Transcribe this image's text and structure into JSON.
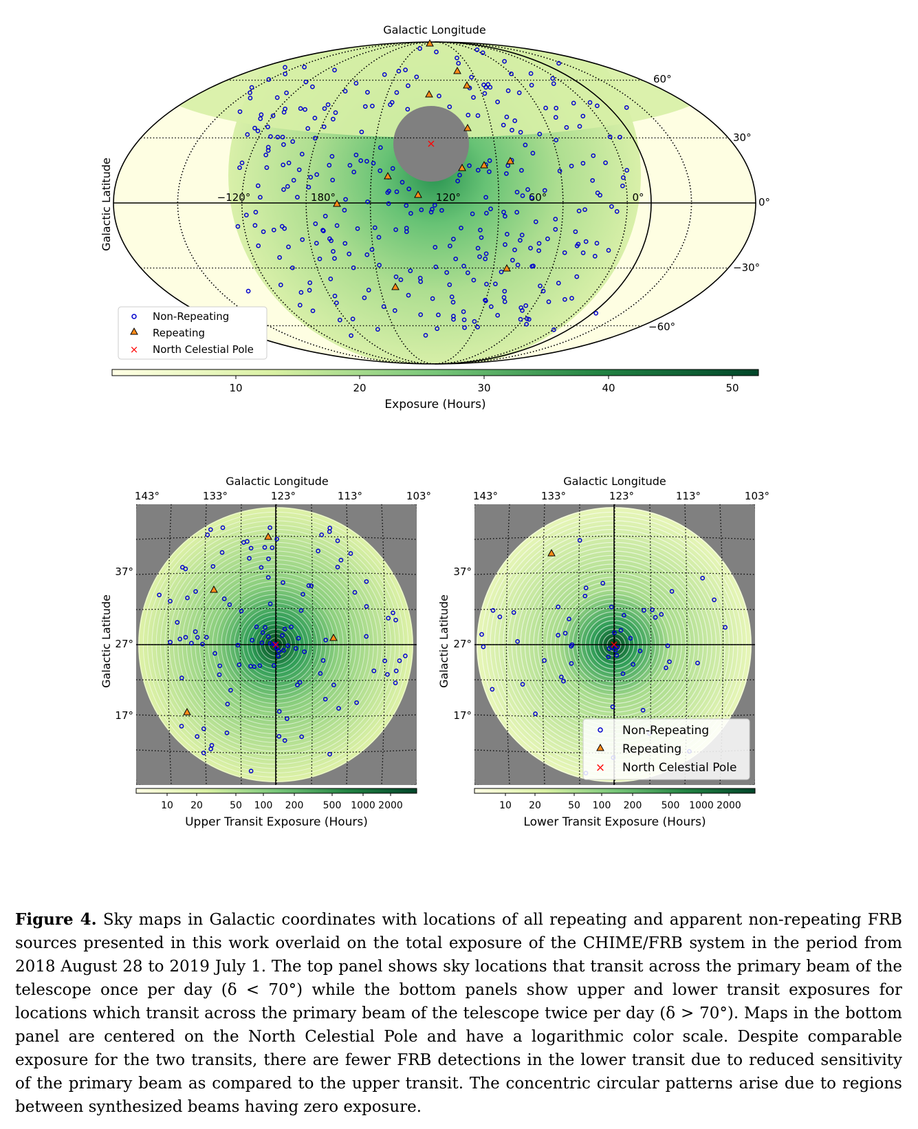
{
  "top_panel": {
    "title": "Galactic Longitude",
    "ylabel": "Galactic Latitude",
    "lon_ticks": [
      "−120°",
      "180°",
      "120°",
      "60°",
      "0°"
    ],
    "lat_ticks": [
      "60°",
      "30°",
      "0°",
      "−30°",
      "−60°"
    ],
    "legend": [
      "Non-Repeating",
      "Repeating",
      "North Celestial Pole"
    ],
    "colorbar_label": "Exposure (Hours)",
    "colorbar_ticks": [
      "10",
      "20",
      "30",
      "40",
      "50"
    ]
  },
  "bottom_panels": [
    {
      "title": "Galactic Longitude",
      "ylabel": "Galactic Latitude",
      "lon_ticks": [
        "143°",
        "133°",
        "123°",
        "113°",
        "103°"
      ],
      "lat_ticks": [
        "37°",
        "27°",
        "17°"
      ],
      "colorbar_label": "Upper Transit Exposure (Hours)",
      "colorbar_ticks": [
        "10",
        "20",
        "50",
        "100",
        "200",
        "500",
        "1000",
        "2000"
      ]
    },
    {
      "title": "Galactic Longitude",
      "ylabel": "Galactic Latitude",
      "lon_ticks": [
        "143°",
        "133°",
        "123°",
        "113°",
        "103°"
      ],
      "lat_ticks": [
        "37°",
        "27°",
        "17°"
      ],
      "colorbar_label": "Lower Transit Exposure (Hours)",
      "colorbar_ticks": [
        "10",
        "20",
        "50",
        "100",
        "200",
        "500",
        "1000",
        "2000"
      ],
      "legend": [
        "Non-Repeating",
        "Repeating",
        "North Celestial Pole"
      ]
    }
  ],
  "colors": {
    "non_repeating": "#0000cc",
    "repeating_fill": "#ff8c1a",
    "pole": "#ff0000",
    "masked": "#808080",
    "exposure_low": "#ffffe0",
    "exposure_high": "#00441b"
  },
  "caption": {
    "label": "Figure 4.",
    "text": "Sky maps in Galactic coordinates with locations of all repeating and apparent non-repeating FRB sources presented in this work overlaid on the total exposure of the CHIME/FRB system in the period from 2018 August 28 to 2019 July 1. The top panel shows sky locations that transit across the primary beam of the telescope once per day (δ < 70°) while the bottom panels show upper and lower transit exposures for locations which transit across the primary beam of the telescope twice per day (δ > 70°). Maps in the bottom panel are centered on the North Celestial Pole and have a logarithmic color scale. Despite comparable exposure for the two transits, there are fewer FRB detections in the lower transit due to reduced sensitivity of the primary beam as compared to the upper transit. The concentric circular patterns arise due to regions between synthesized beams having zero exposure."
  }
}
